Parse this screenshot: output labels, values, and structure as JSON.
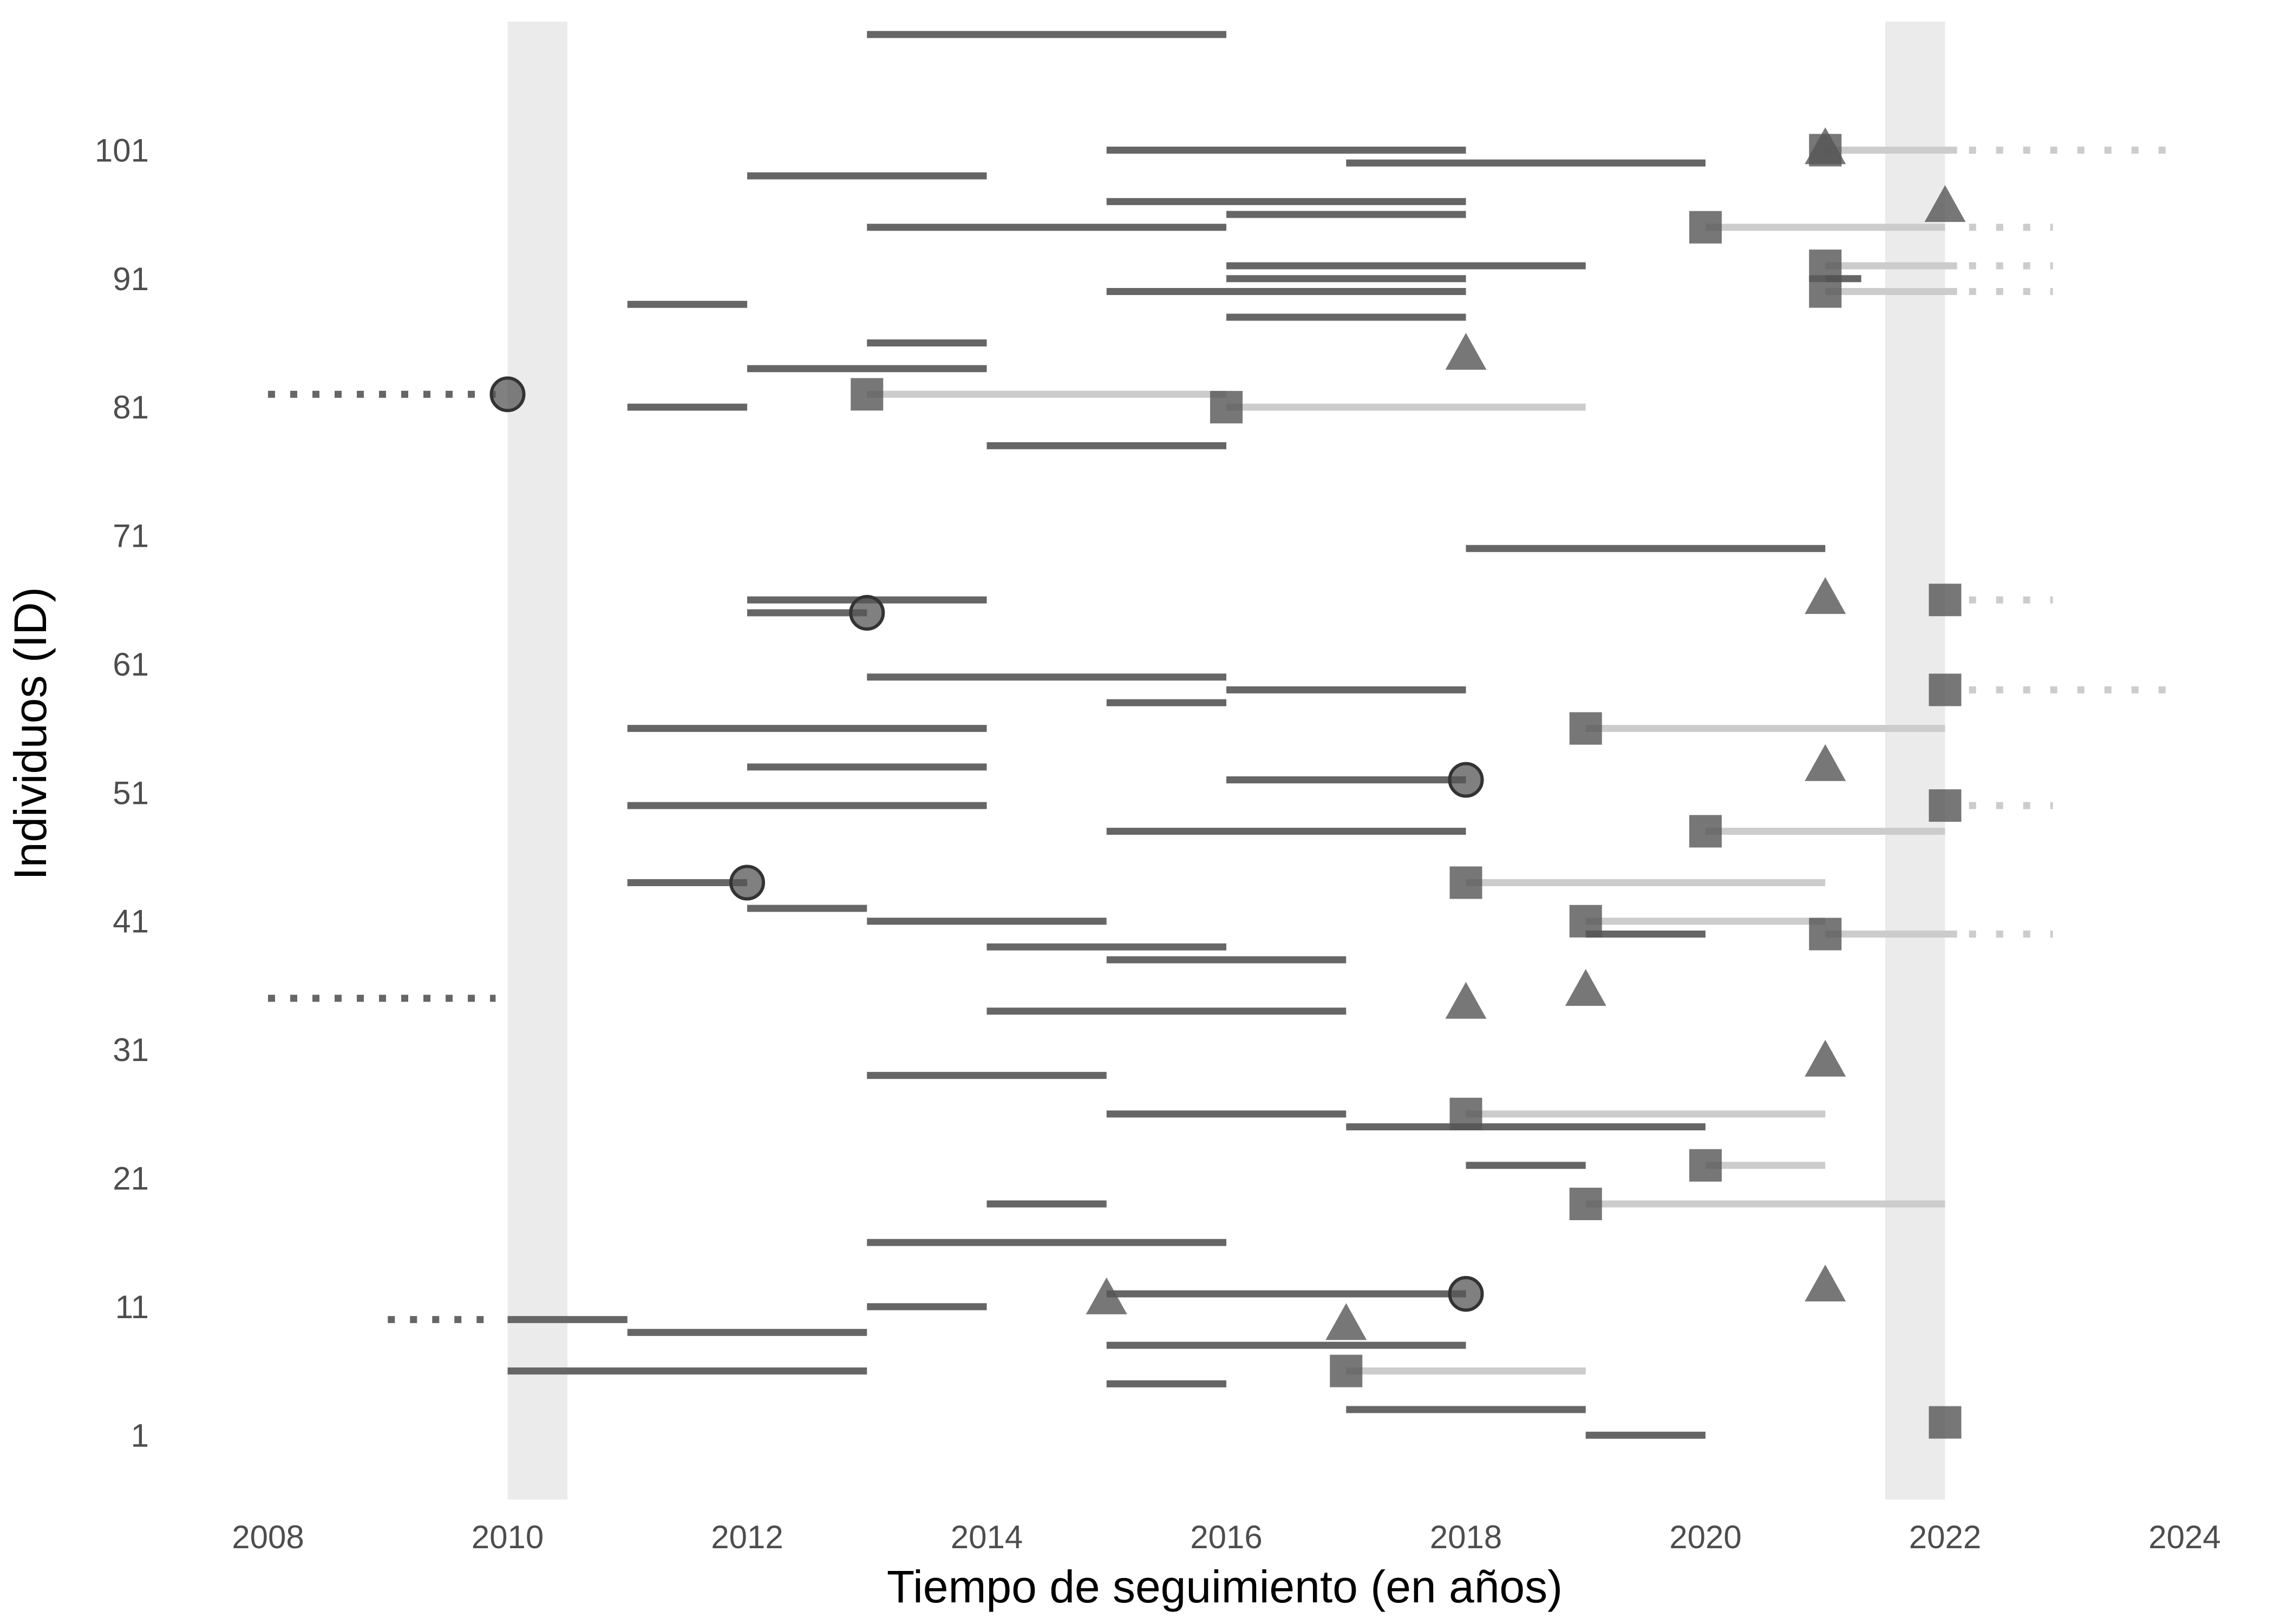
{
  "chart_data": {
    "type": "timeline",
    "xlabel": "Tiempo de seguimiento (en años)",
    "ylabel": "Individuos (ID)",
    "xlim": [
      2008,
      2024
    ],
    "ylim": [
      -4,
      111
    ],
    "x_ticks": [
      2008,
      2010,
      2012,
      2014,
      2016,
      2018,
      2020,
      2022,
      2024
    ],
    "y_ticks": [
      1,
      11,
      21,
      31,
      41,
      51,
      61,
      71,
      81,
      91,
      101
    ],
    "shaded_bands": [
      {
        "from": 2010,
        "to": 2010.5
      },
      {
        "from": 2021.5,
        "to": 2022
      }
    ],
    "colors": {
      "band": "#ebebeb",
      "segment_dark": "#666666",
      "segment_light": "#cccccc",
      "marker": "#555555",
      "marker_dark": "#333333",
      "tick_text": "#4d4d4d",
      "title_text": "#000000"
    },
    "segments": [
      {
        "id": 1,
        "start": 2019,
        "end": 2020,
        "style": "dark"
      },
      {
        "id": 3,
        "start": 2017,
        "end": 2019,
        "style": "dark"
      },
      {
        "id": 5,
        "start": 2015,
        "end": 2016,
        "style": "dark"
      },
      {
        "id": 6,
        "start": 2010,
        "end": 2013,
        "style": "dark"
      },
      {
        "id": 6,
        "start": 2017,
        "end": 2019,
        "style": "light"
      },
      {
        "id": 8,
        "start": 2015,
        "end": 2018,
        "style": "dark"
      },
      {
        "id": 9,
        "start": 2011,
        "end": 2013,
        "style": "dark"
      },
      {
        "id": 10,
        "start": 2010,
        "end": 2011,
        "style": "dark"
      },
      {
        "id": 10,
        "start": 2009,
        "end": 2009.9,
        "style": "dotted"
      },
      {
        "id": 11,
        "start": 2013,
        "end": 2014,
        "style": "dark"
      },
      {
        "id": 12,
        "start": 2015,
        "end": 2018,
        "style": "dark"
      },
      {
        "id": 16,
        "start": 2013,
        "end": 2016,
        "style": "dark"
      },
      {
        "id": 19,
        "start": 2014,
        "end": 2015,
        "style": "dark"
      },
      {
        "id": 19,
        "start": 2019,
        "end": 2022,
        "style": "light"
      },
      {
        "id": 22,
        "start": 2018,
        "end": 2019,
        "style": "dark"
      },
      {
        "id": 22,
        "start": 2020,
        "end": 2021,
        "style": "light"
      },
      {
        "id": 25,
        "start": 2017,
        "end": 2020,
        "style": "dark"
      },
      {
        "id": 26,
        "start": 2015,
        "end": 2017,
        "style": "dark"
      },
      {
        "id": 26,
        "start": 2018,
        "end": 2021,
        "style": "light"
      },
      {
        "id": 29,
        "start": 2013,
        "end": 2015,
        "style": "dark"
      },
      {
        "id": 34,
        "start": 2014,
        "end": 2017,
        "style": "dark"
      },
      {
        "id": 35,
        "start": 2008,
        "end": 2009.9,
        "style": "dotted"
      },
      {
        "id": 38,
        "start": 2015,
        "end": 2017,
        "style": "dark"
      },
      {
        "id": 39,
        "start": 2014,
        "end": 2016,
        "style": "dark"
      },
      {
        "id": 40,
        "start": 2019,
        "end": 2020,
        "style": "dark"
      },
      {
        "id": 40,
        "start": 2021,
        "end": 2022.1,
        "style": "light"
      },
      {
        "id": 40,
        "start": 2022.2,
        "end": 2022.9,
        "style": "dotted-light"
      },
      {
        "id": 41,
        "start": 2013,
        "end": 2015,
        "style": "dark"
      },
      {
        "id": 41,
        "start": 2019,
        "end": 2021,
        "style": "light"
      },
      {
        "id": 42,
        "start": 2012,
        "end": 2013,
        "style": "dark"
      },
      {
        "id": 44,
        "start": 2011,
        "end": 2012,
        "style": "dark"
      },
      {
        "id": 44,
        "start": 2018,
        "end": 2021,
        "style": "light"
      },
      {
        "id": 48,
        "start": 2015,
        "end": 2018,
        "style": "dark"
      },
      {
        "id": 48,
        "start": 2020,
        "end": 2022,
        "style": "light"
      },
      {
        "id": 50,
        "start": 2011,
        "end": 2014,
        "style": "dark"
      },
      {
        "id": 50,
        "start": 2022.2,
        "end": 2022.9,
        "style": "dotted-light"
      },
      {
        "id": 52,
        "start": 2016,
        "end": 2018,
        "style": "dark"
      },
      {
        "id": 53,
        "start": 2012,
        "end": 2014,
        "style": "dark"
      },
      {
        "id": 56,
        "start": 2011,
        "end": 2014,
        "style": "dark"
      },
      {
        "id": 56,
        "start": 2019,
        "end": 2022,
        "style": "light"
      },
      {
        "id": 58,
        "start": 2015,
        "end": 2016,
        "style": "dark"
      },
      {
        "id": 59,
        "start": 2016,
        "end": 2018,
        "style": "dark"
      },
      {
        "id": 59,
        "start": 2022.2,
        "end": 2023.9,
        "style": "dotted-light"
      },
      {
        "id": 60,
        "start": 2013,
        "end": 2016,
        "style": "dark"
      },
      {
        "id": 65,
        "start": 2012,
        "end": 2013,
        "style": "dark"
      },
      {
        "id": 66,
        "start": 2012,
        "end": 2014,
        "style": "dark"
      },
      {
        "id": 66,
        "start": 2022.2,
        "end": 2022.9,
        "style": "dotted-light"
      },
      {
        "id": 70,
        "start": 2018,
        "end": 2021,
        "style": "dark"
      },
      {
        "id": 78,
        "start": 2014,
        "end": 2016,
        "style": "dark"
      },
      {
        "id": 81,
        "start": 2011,
        "end": 2012,
        "style": "dark"
      },
      {
        "id": 81,
        "start": 2016,
        "end": 2019,
        "style": "light"
      },
      {
        "id": 82,
        "start": 2008,
        "end": 2009.9,
        "style": "dotted"
      },
      {
        "id": 82,
        "start": 2013,
        "end": 2016,
        "style": "light"
      },
      {
        "id": 84,
        "start": 2012,
        "end": 2014,
        "style": "dark"
      },
      {
        "id": 86,
        "start": 2013,
        "end": 2014,
        "style": "dark"
      },
      {
        "id": 88,
        "start": 2016,
        "end": 2018,
        "style": "dark"
      },
      {
        "id": 89,
        "start": 2011,
        "end": 2012,
        "style": "dark"
      },
      {
        "id": 90,
        "start": 2015,
        "end": 2018,
        "style": "dark"
      },
      {
        "id": 90,
        "start": 2021,
        "end": 2022.1,
        "style": "light"
      },
      {
        "id": 90,
        "start": 2022.2,
        "end": 2022.9,
        "style": "dotted-light"
      },
      {
        "id": 91,
        "start": 2016,
        "end": 2018,
        "style": "dark"
      },
      {
        "id": 91,
        "start": 2021,
        "end": 2021.3,
        "style": "dark"
      },
      {
        "id": 92,
        "start": 2016,
        "end": 2019,
        "style": "dark"
      },
      {
        "id": 92,
        "start": 2021,
        "end": 2022.1,
        "style": "light"
      },
      {
        "id": 92,
        "start": 2022.2,
        "end": 2022.9,
        "style": "dotted-light"
      },
      {
        "id": 95,
        "start": 2013,
        "end": 2016,
        "style": "dark"
      },
      {
        "id": 95,
        "start": 2020,
        "end": 2022,
        "style": "light"
      },
      {
        "id": 95,
        "start": 2022.2,
        "end": 2022.9,
        "style": "dotted-light"
      },
      {
        "id": 96,
        "start": 2016,
        "end": 2018,
        "style": "dark"
      },
      {
        "id": 97,
        "start": 2015,
        "end": 2018,
        "style": "dark"
      },
      {
        "id": 99,
        "start": 2012,
        "end": 2014,
        "style": "dark"
      },
      {
        "id": 100,
        "start": 2017,
        "end": 2020,
        "style": "dark"
      },
      {
        "id": 101,
        "start": 2015,
        "end": 2018,
        "style": "dark"
      },
      {
        "id": 101,
        "start": 2021,
        "end": 2022.1,
        "style": "light"
      },
      {
        "id": 101,
        "start": 2022.2,
        "end": 2023.9,
        "style": "dotted-light"
      },
      {
        "id": 110,
        "start": 2013,
        "end": 2016,
        "style": "dark"
      }
    ],
    "markers": [
      {
        "id": 2,
        "x": 2022,
        "shape": "square"
      },
      {
        "id": 6,
        "x": 2017,
        "shape": "square"
      },
      {
        "id": 9.5,
        "x": 2017,
        "shape": "triangle"
      },
      {
        "id": 11.5,
        "x": 2015,
        "shape": "triangle"
      },
      {
        "id": 12,
        "x": 2018,
        "shape": "circle"
      },
      {
        "id": 12.5,
        "x": 2021,
        "shape": "triangle"
      },
      {
        "id": 19,
        "x": 2019,
        "shape": "square"
      },
      {
        "id": 22,
        "x": 2020,
        "shape": "square"
      },
      {
        "id": 26,
        "x": 2018,
        "shape": "square"
      },
      {
        "id": 30,
        "x": 2021,
        "shape": "triangle"
      },
      {
        "id": 34.5,
        "x": 2018,
        "shape": "triangle"
      },
      {
        "id": 35.5,
        "x": 2019,
        "shape": "triangle"
      },
      {
        "id": 40,
        "x": 2021,
        "shape": "square"
      },
      {
        "id": 41,
        "x": 2019,
        "shape": "square"
      },
      {
        "id": 44,
        "x": 2012,
        "shape": "circle"
      },
      {
        "id": 44,
        "x": 2018,
        "shape": "square"
      },
      {
        "id": 48,
        "x": 2020,
        "shape": "square"
      },
      {
        "id": 50,
        "x": 2022,
        "shape": "square"
      },
      {
        "id": 52,
        "x": 2018,
        "shape": "circle"
      },
      {
        "id": 53,
        "x": 2021,
        "shape": "triangle"
      },
      {
        "id": 56,
        "x": 2019,
        "shape": "square"
      },
      {
        "id": 59,
        "x": 2022,
        "shape": "square"
      },
      {
        "id": 65,
        "x": 2013,
        "shape": "circle"
      },
      {
        "id": 66,
        "x": 2022,
        "shape": "square"
      },
      {
        "id": 66,
        "x": 2021,
        "shape": "triangle"
      },
      {
        "id": 81,
        "x": 2016,
        "shape": "square"
      },
      {
        "id": 82,
        "x": 2010,
        "shape": "circle"
      },
      {
        "id": 82,
        "x": 2013,
        "shape": "square"
      },
      {
        "id": 85,
        "x": 2018,
        "shape": "triangle"
      },
      {
        "id": 90,
        "x": 2021,
        "shape": "square"
      },
      {
        "id": 92,
        "x": 2021,
        "shape": "square"
      },
      {
        "id": 95,
        "x": 2020,
        "shape": "square"
      },
      {
        "id": 96.5,
        "x": 2022,
        "shape": "triangle"
      },
      {
        "id": 101,
        "x": 2021,
        "shape": "square"
      },
      {
        "id": 101,
        "x": 2021,
        "shape": "triangle"
      }
    ]
  }
}
